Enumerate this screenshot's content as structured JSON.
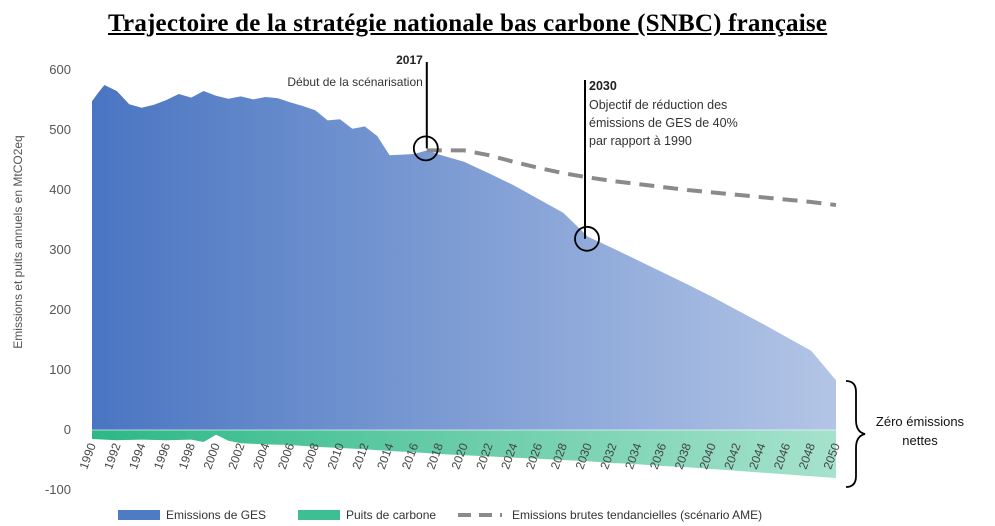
{
  "chart_data": {
    "type": "area",
    "title": "Trajectoire de la stratégie nationale bas carbone (SNBC) française",
    "ylabel": "Emissions et puits annuels en MtCO2eq",
    "xlabel": "",
    "ylim": [
      -100,
      600
    ],
    "xlim": [
      1990,
      2050
    ],
    "y_ticks": [
      600,
      500,
      400,
      300,
      200,
      100,
      0,
      -100
    ],
    "x_ticks": [
      1990,
      1992,
      1994,
      1996,
      1998,
      2000,
      2002,
      2004,
      2006,
      2008,
      2010,
      2012,
      2014,
      2016,
      2018,
      2020,
      2022,
      2024,
      2026,
      2028,
      2030,
      2032,
      2034,
      2036,
      2038,
      2040,
      2042,
      2044,
      2046,
      2048,
      2050
    ],
    "series": [
      {
        "name": "Emissions de GES",
        "kind": "area",
        "color": "#4f7bc4",
        "points": [
          [
            1990,
            548
          ],
          [
            1990.5,
            562
          ],
          [
            1991,
            575
          ],
          [
            1992,
            565
          ],
          [
            1993,
            543
          ],
          [
            1994,
            537
          ],
          [
            1995,
            542
          ],
          [
            1996,
            550
          ],
          [
            1997,
            560
          ],
          [
            1998,
            554
          ],
          [
            1999,
            565
          ],
          [
            2000,
            557
          ],
          [
            2001,
            552
          ],
          [
            2002,
            556
          ],
          [
            2003,
            551
          ],
          [
            2004,
            555
          ],
          [
            2005,
            553
          ],
          [
            2006,
            546
          ],
          [
            2007,
            540
          ],
          [
            2008,
            533
          ],
          [
            2009,
            516
          ],
          [
            2010,
            518
          ],
          [
            2011,
            502
          ],
          [
            2012,
            506
          ],
          [
            2013,
            490
          ],
          [
            2014,
            458
          ],
          [
            2015,
            459
          ],
          [
            2016,
            460
          ],
          [
            2017,
            466
          ],
          [
            2018,
            459
          ],
          [
            2020,
            447
          ],
          [
            2022,
            428
          ],
          [
            2024,
            408
          ],
          [
            2026,
            385
          ],
          [
            2028,
            362
          ],
          [
            2030,
            322
          ],
          [
            2032,
            303
          ],
          [
            2034,
            283
          ],
          [
            2036,
            263
          ],
          [
            2038,
            243
          ],
          [
            2040,
            222
          ],
          [
            2042,
            200
          ],
          [
            2044,
            178
          ],
          [
            2046,
            155
          ],
          [
            2048,
            132
          ],
          [
            2050,
            83
          ]
        ]
      },
      {
        "name": "Puits de carbone",
        "kind": "area",
        "color": "#3dbf94",
        "points": [
          [
            1990,
            -15
          ],
          [
            1992,
            -17
          ],
          [
            1994,
            -16
          ],
          [
            1996,
            -17
          ],
          [
            1998,
            -16
          ],
          [
            1999,
            -20
          ],
          [
            2000,
            -8
          ],
          [
            2001,
            -18
          ],
          [
            2002,
            -22
          ],
          [
            2004,
            -24
          ],
          [
            2006,
            -25
          ],
          [
            2008,
            -28
          ],
          [
            2010,
            -30
          ],
          [
            2012,
            -32
          ],
          [
            2014,
            -35
          ],
          [
            2016,
            -37
          ],
          [
            2018,
            -40
          ],
          [
            2020,
            -42
          ],
          [
            2022,
            -44
          ],
          [
            2024,
            -46
          ],
          [
            2026,
            -48
          ],
          [
            2028,
            -50
          ],
          [
            2030,
            -52
          ],
          [
            2032,
            -55
          ],
          [
            2034,
            -57
          ],
          [
            2036,
            -60
          ],
          [
            2038,
            -62
          ],
          [
            2040,
            -65
          ],
          [
            2042,
            -68
          ],
          [
            2044,
            -71
          ],
          [
            2046,
            -74
          ],
          [
            2048,
            -77
          ],
          [
            2050,
            -80
          ]
        ]
      },
      {
        "name": "Emissions brutes tendancielles (scénario AME)",
        "kind": "dashed-line",
        "color": "#8a8a8a",
        "points": [
          [
            2017,
            466
          ],
          [
            2020,
            466
          ],
          [
            2022,
            458
          ],
          [
            2024,
            447
          ],
          [
            2026,
            437
          ],
          [
            2028,
            428
          ],
          [
            2030,
            421
          ],
          [
            2032,
            415
          ],
          [
            2034,
            410
          ],
          [
            2036,
            405
          ],
          [
            2038,
            400
          ],
          [
            2040,
            396
          ],
          [
            2042,
            392
          ],
          [
            2044,
            388
          ],
          [
            2046,
            384
          ],
          [
            2048,
            380
          ],
          [
            2050,
            375
          ]
        ]
      }
    ],
    "annotations": [
      {
        "x": 2017,
        "y": 466,
        "year_label": "2017",
        "text_lines": [
          "Début de la scénarisation"
        ]
      },
      {
        "x": 2030,
        "y": 322,
        "year_label": "2030",
        "text_lines": [
          "Objectif de réduction des",
          "émissions de GES de 40%",
          "par rapport à 1990"
        ]
      }
    ],
    "brace_label_lines": [
      "Zéro émissions",
      "nettes"
    ],
    "legend_position": "bottom"
  }
}
